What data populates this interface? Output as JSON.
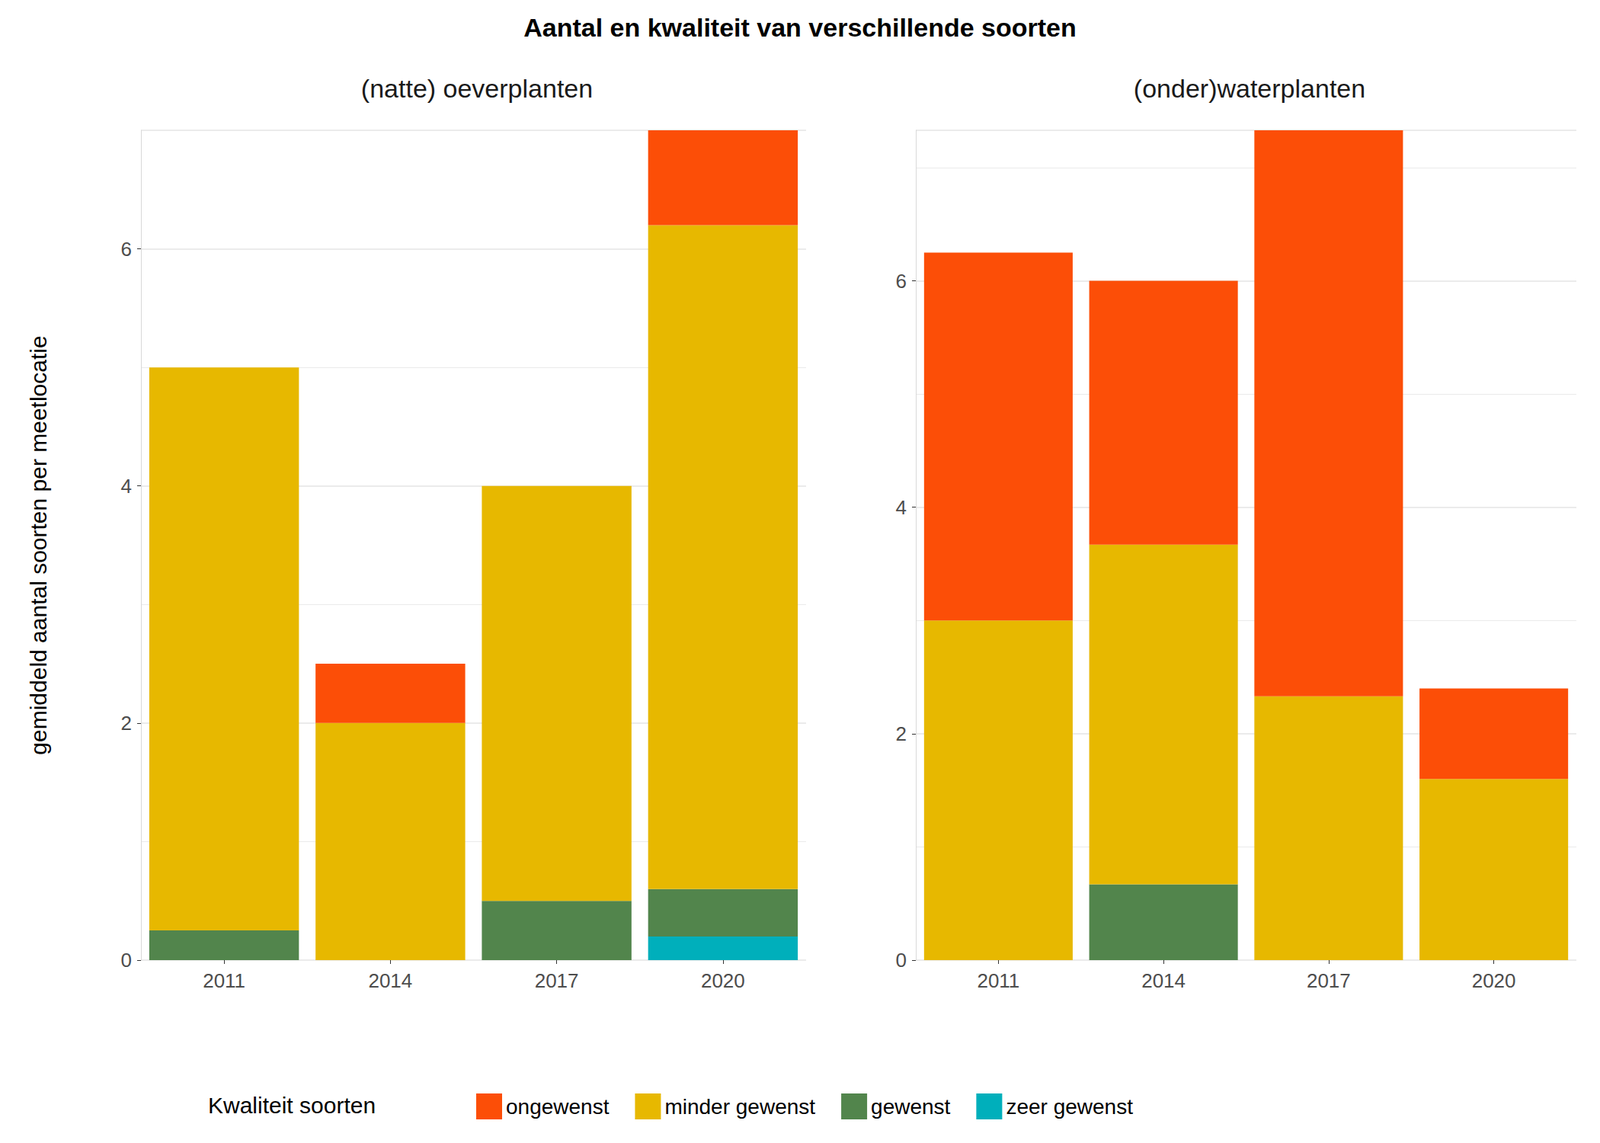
{
  "chart_data": {
    "type": "bar",
    "title": "Aantal en kwaliteit van verschillende soorten",
    "ylabel": "gemiddeld aantal soorten per meetlocatie",
    "legend_title": "Kwaliteit soorten",
    "legend": "bottom",
    "stacked": true,
    "grid": true,
    "panels": [
      {
        "subtitle": "(natte) oeverplanten",
        "categories": [
          "2011",
          "2014",
          "2017",
          "2020"
        ],
        "ylim": [
          0,
          7
        ],
        "yticks": [
          0,
          2,
          4,
          6
        ],
        "series": [
          {
            "name": "zeer gewenst",
            "color": "#00AFBB",
            "values": [
              0,
              0,
              0,
              0.2
            ]
          },
          {
            "name": "gewenst",
            "color": "#52854C",
            "values": [
              0.25,
              0,
              0.5,
              0.4
            ]
          },
          {
            "name": "minder gewenst",
            "color": "#E7B800",
            "values": [
              4.75,
              2,
              3.5,
              5.6
            ]
          },
          {
            "name": "ongewenst",
            "color": "#FC4E07",
            "values": [
              0,
              0.5,
              0,
              0.8
            ]
          }
        ]
      },
      {
        "subtitle": "(onder)waterplanten",
        "categories": [
          "2011",
          "2014",
          "2017",
          "2020"
        ],
        "ylim": [
          0,
          7.33
        ],
        "yticks": [
          0,
          2,
          4,
          6
        ],
        "series": [
          {
            "name": "zeer gewenst",
            "color": "#00AFBB",
            "values": [
              0,
              0,
              0,
              0
            ]
          },
          {
            "name": "gewenst",
            "color": "#52854C",
            "values": [
              0,
              0.67,
              0,
              0
            ]
          },
          {
            "name": "minder gewenst",
            "color": "#E7B800",
            "values": [
              3,
              3,
              2.33,
              1.6
            ]
          },
          {
            "name": "ongewenst",
            "color": "#FC4E07",
            "values": [
              3.25,
              2.33,
              5,
              0.8
            ]
          }
        ]
      }
    ]
  }
}
